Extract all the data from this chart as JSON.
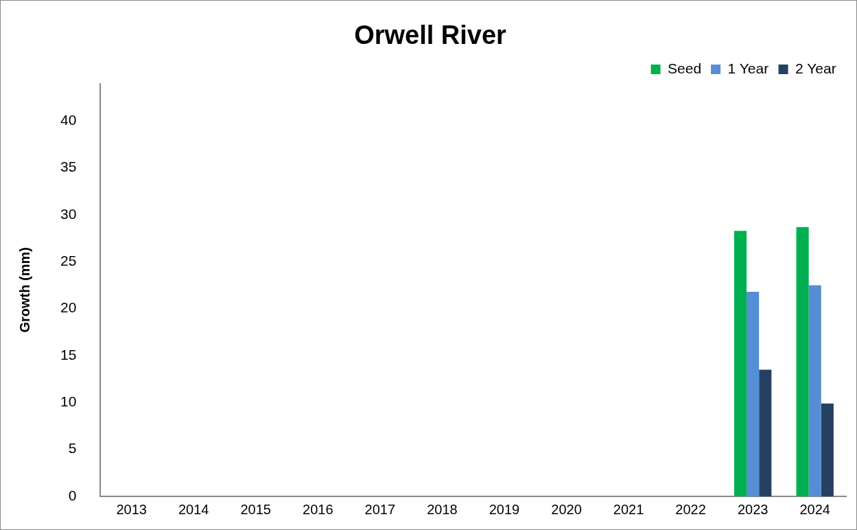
{
  "chart_data": {
    "type": "bar",
    "title": "Orwell River",
    "ylabel": "Growth (mm)",
    "categories": [
      "2013",
      "2014",
      "2015",
      "2016",
      "2017",
      "2018",
      "2019",
      "2020",
      "2021",
      "2022",
      "2023",
      "2024"
    ],
    "series": [
      {
        "name": "Seed",
        "color": "#00b050",
        "values": [
          null,
          null,
          null,
          null,
          null,
          null,
          null,
          null,
          null,
          null,
          28.3,
          28.7
        ]
      },
      {
        "name": "1 Year",
        "color": "#558ed5",
        "values": [
          null,
          null,
          null,
          null,
          null,
          null,
          null,
          null,
          null,
          null,
          21.8,
          22.5
        ]
      },
      {
        "name": "2 Year",
        "color": "#254061",
        "values": [
          null,
          null,
          null,
          null,
          null,
          null,
          null,
          null,
          null,
          null,
          13.5,
          9.9
        ]
      }
    ],
    "ylim": [
      0,
      44
    ],
    "yticks": [
      0,
      5,
      10,
      15,
      20,
      25,
      30,
      35,
      40
    ],
    "grid": false,
    "legend": "top right"
  }
}
